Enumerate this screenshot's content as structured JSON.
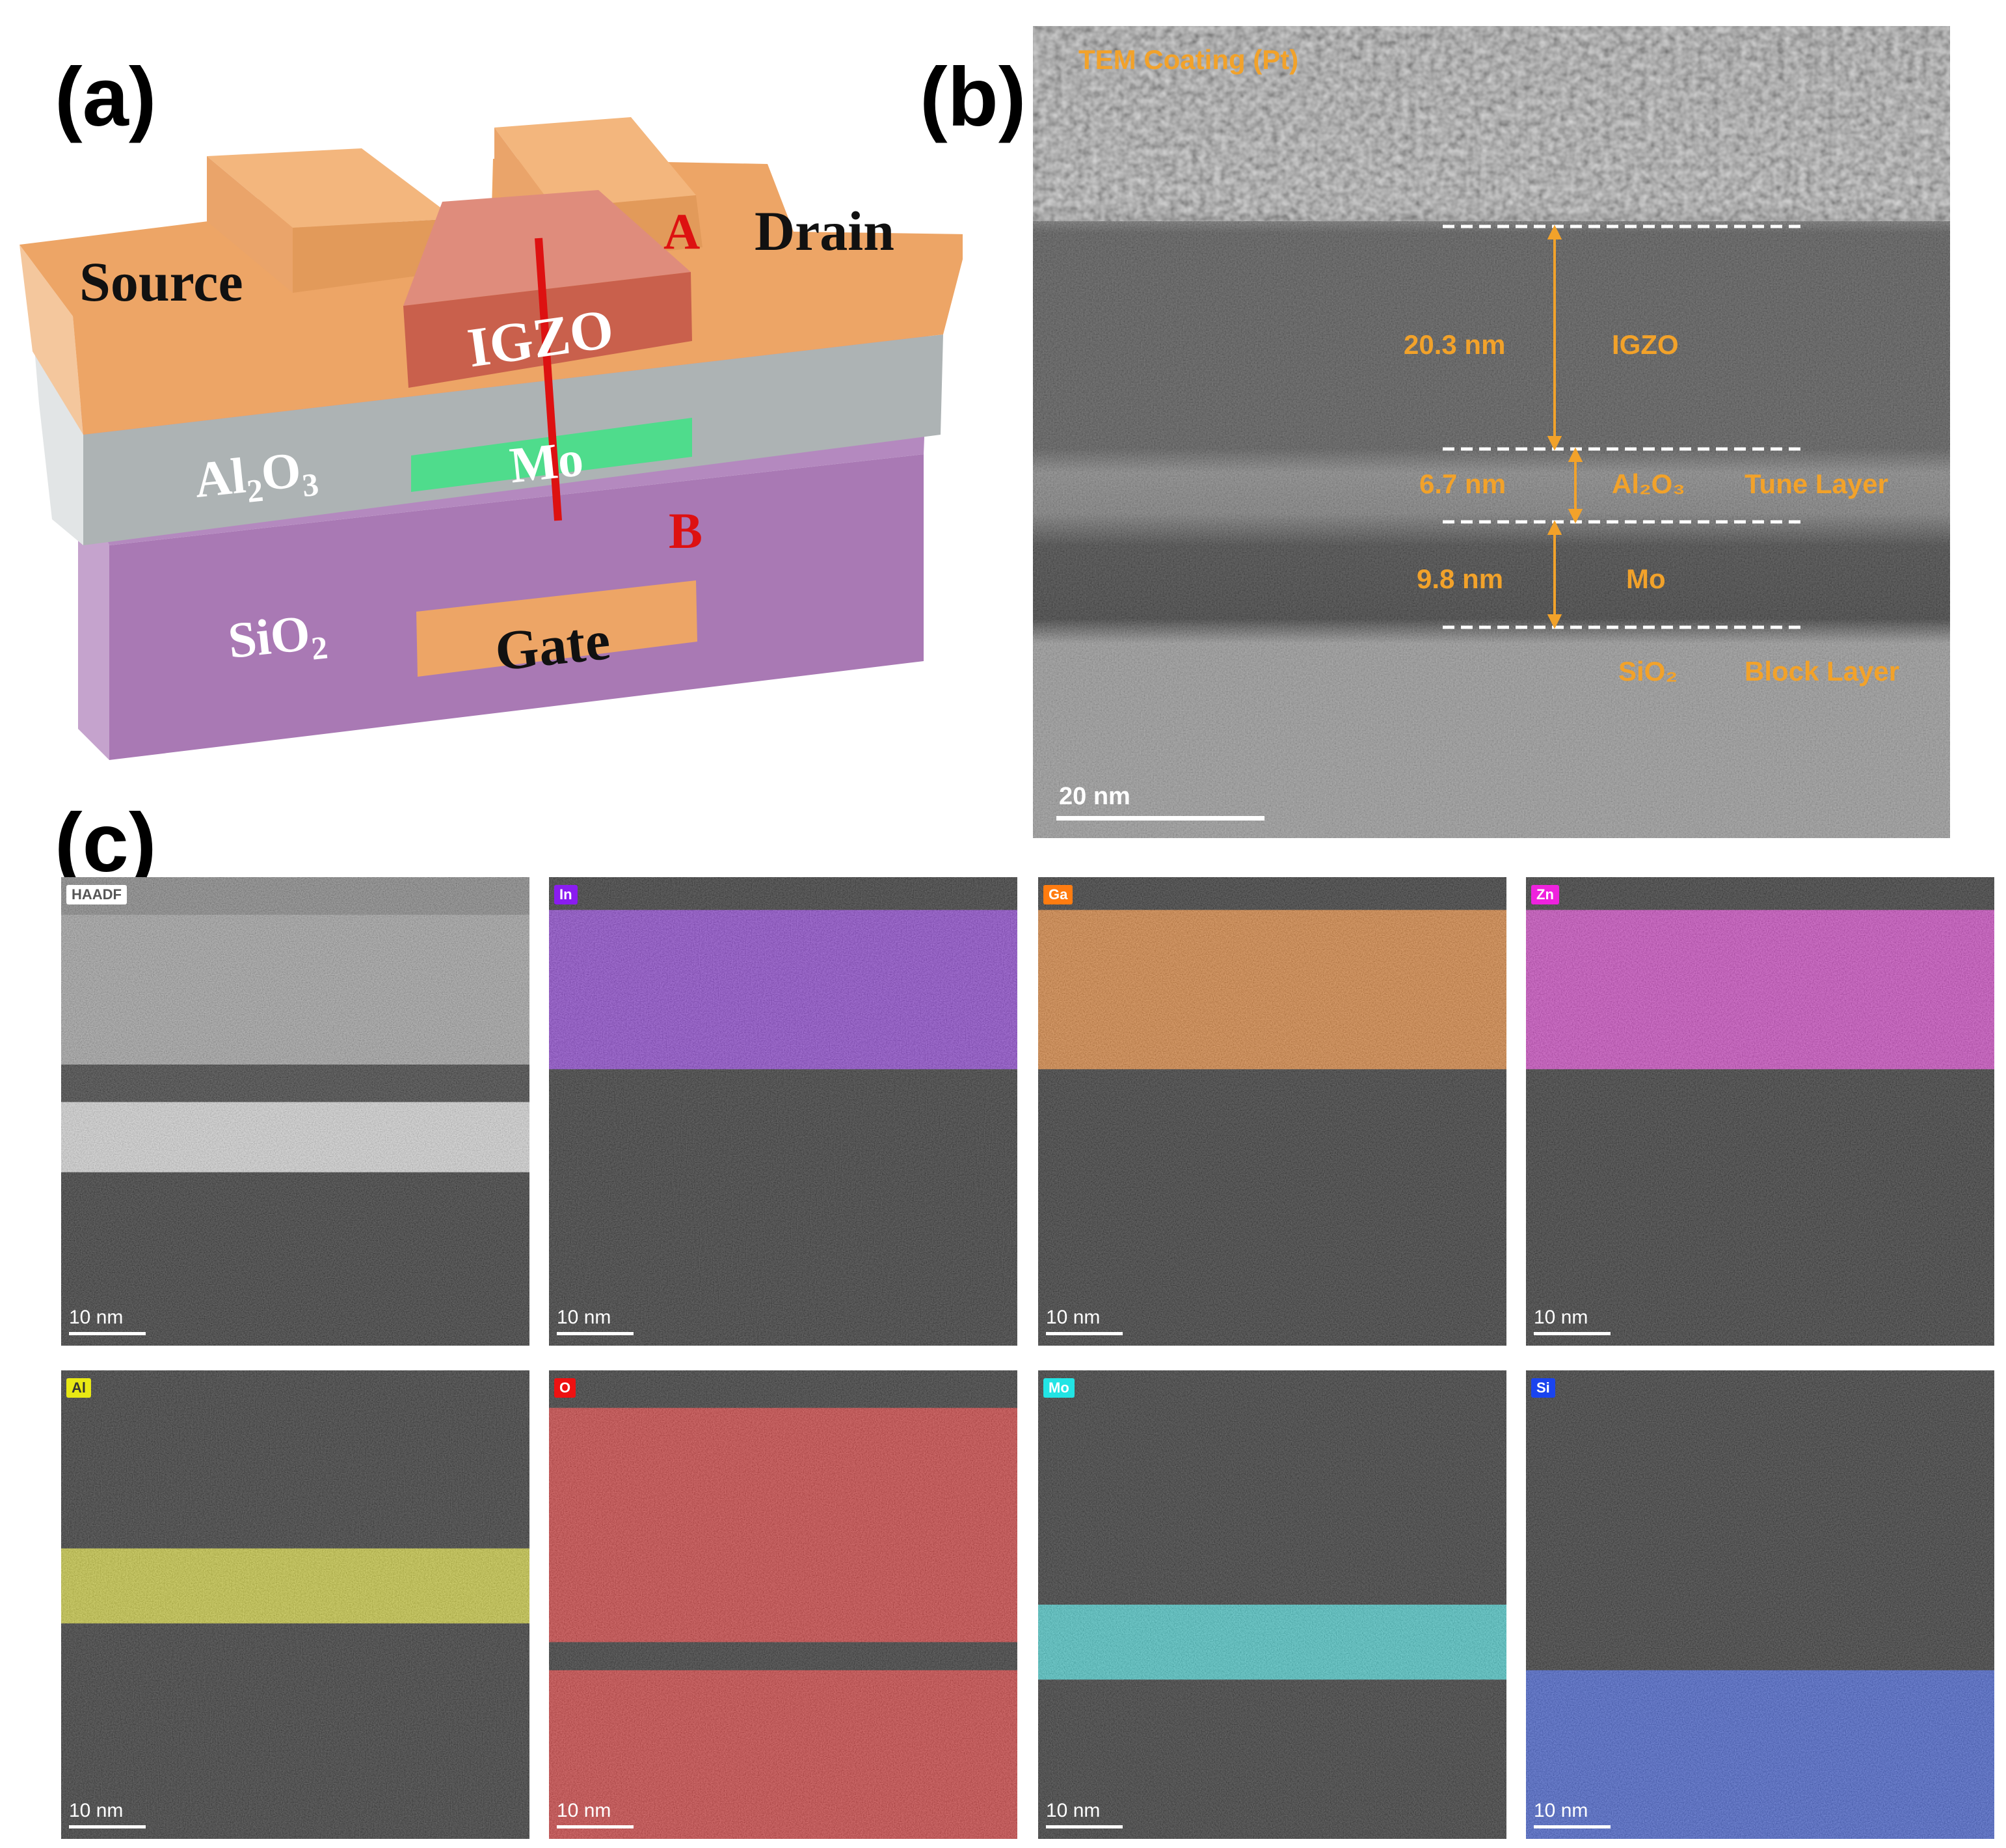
{
  "panels": {
    "a": "(a)",
    "b": "(b)",
    "c": "(c)"
  },
  "device": {
    "source": "Source",
    "drain": "Drain",
    "igzo": "IGZO",
    "al2o3": "Al",
    "al2o3_sub1": "2",
    "al2o3_o": "O",
    "al2o3_sub2": "3",
    "mo": "Mo",
    "sio2": "SiO",
    "sio2_sub": "2",
    "gate": "Gate",
    "point_a": "A",
    "point_b": "B",
    "colors": {
      "contact": "#eda566",
      "igzo": "#c9604c",
      "al2o3": "#adb3b4",
      "mo": "#4fdc8c",
      "sio2": "#a979b4",
      "marker": "#dd1111"
    }
  },
  "tem": {
    "coating": "TEM Coating (Pt)",
    "igzo_thickness": "20.3 nm",
    "igzo": "IGZO",
    "al2o3_thickness": "6.7 nm",
    "al2o3": "Al₂O₃",
    "tune_layer": "Tune Layer",
    "mo_thickness": "9.8 nm",
    "mo": "Mo",
    "sio2": "SiO₂",
    "block_layer": "Block Layer",
    "scale": "20 nm",
    "label_color": "#f2a22a"
  },
  "eds": {
    "maps": [
      {
        "label": "HAADF",
        "scale": "10 nm",
        "color": "#ffffff"
      },
      {
        "label": "In",
        "scale": "10 nm",
        "color": "#8a1cf0"
      },
      {
        "label": "Ga",
        "scale": "10 nm",
        "color": "#ff7c10"
      },
      {
        "label": "Zn",
        "scale": "10 nm",
        "color": "#ee22dd"
      },
      {
        "label": "Al",
        "scale": "10 nm",
        "color": "#e8e814"
      },
      {
        "label": "O",
        "scale": "10 nm",
        "color": "#ee1111"
      },
      {
        "label": "Mo",
        "scale": "10 nm",
        "color": "#22e4e4"
      },
      {
        "label": "Si",
        "scale": "10 nm",
        "color": "#1a44ee"
      }
    ]
  }
}
